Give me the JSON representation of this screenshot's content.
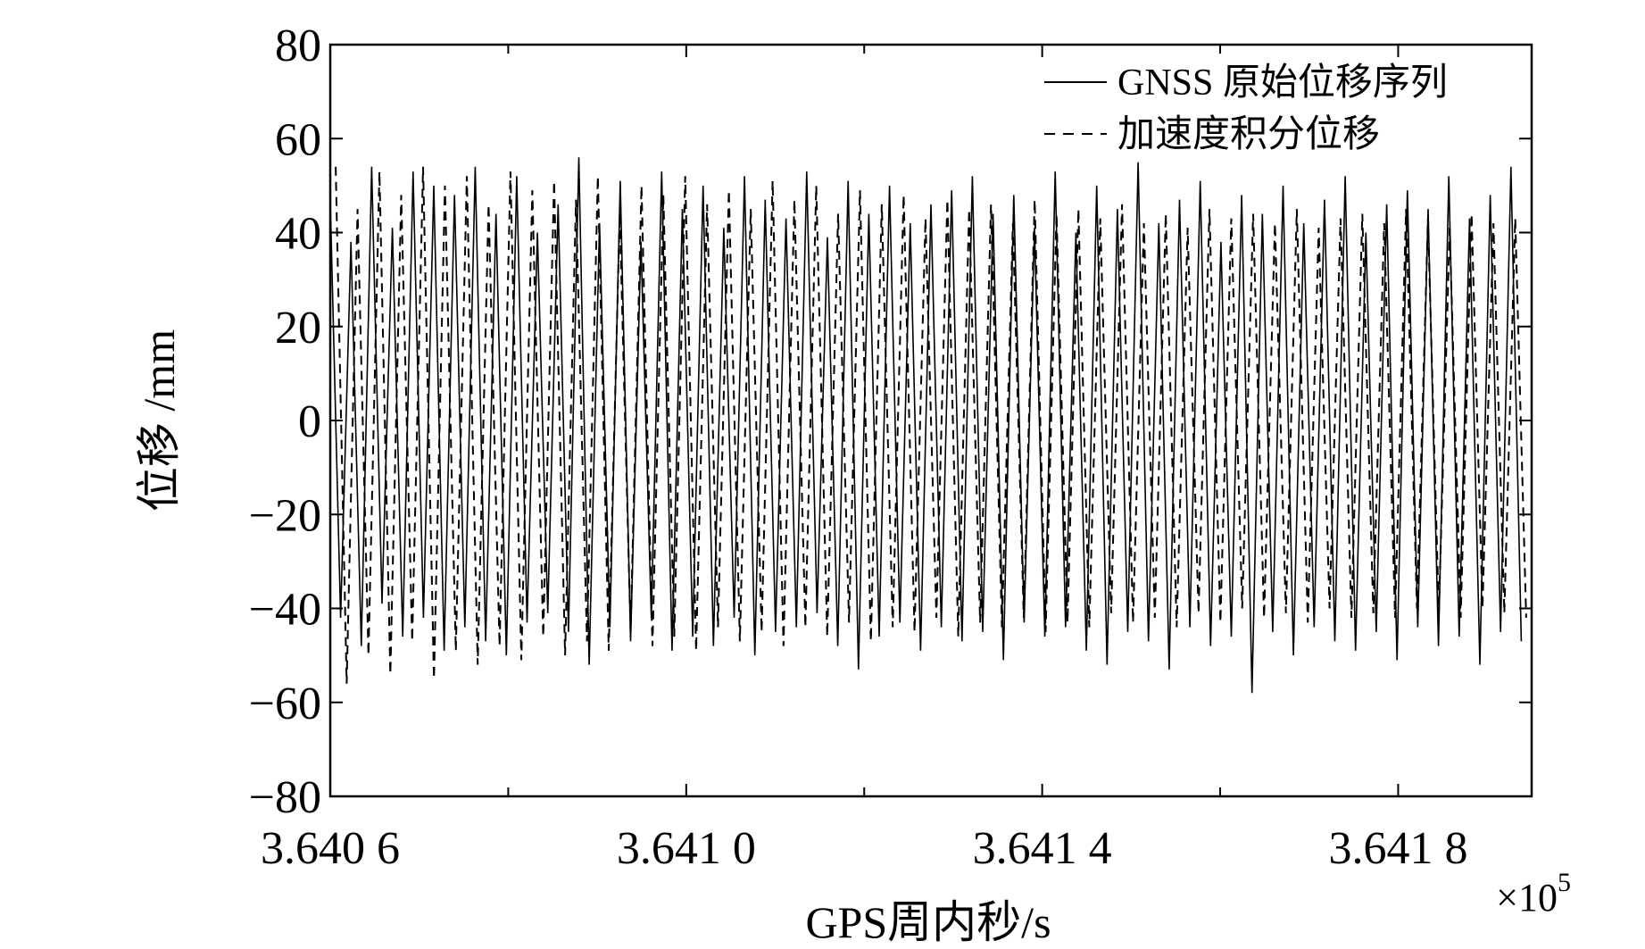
{
  "chart_data": {
    "type": "line",
    "xlabel": "GPS周内秒/s",
    "ylabel": "位移 /mm",
    "x_multiplier": "×10",
    "x_multiplier_exp": "5",
    "xlim": [
      3.6406,
      3.64195
    ],
    "ylim": [
      -80,
      80
    ],
    "x_ticks": [
      {
        "value": 3.6406,
        "label": "3.640 6"
      },
      {
        "value": 3.641,
        "label": "3.641 0"
      },
      {
        "value": 3.6414,
        "label": "3.641 4"
      },
      {
        "value": 3.6418,
        "label": "3.641 8"
      }
    ],
    "x_minor_ticks": [
      3.6408,
      3.6412,
      3.6416
    ],
    "y_ticks": [
      {
        "value": 80,
        "label": "80"
      },
      {
        "value": 60,
        "label": "60"
      },
      {
        "value": 40,
        "label": "40"
      },
      {
        "value": 20,
        "label": "20"
      },
      {
        "value": 0,
        "label": "0"
      },
      {
        "value": -20,
        "label": "−20"
      },
      {
        "value": -40,
        "label": "−40"
      },
      {
        "value": -60,
        "label": "−60"
      },
      {
        "value": -80,
        "label": "−80"
      }
    ],
    "grid": false,
    "legend_position": "top-right",
    "series": [
      {
        "name": "GNSS 原始位移序列",
        "style": "solid",
        "color": "#000000",
        "peaks": [
          47,
          38,
          54,
          41,
          53,
          50,
          48,
          54,
          44,
          52,
          40,
          46,
          56,
          42,
          51,
          38,
          53,
          45,
          50,
          41,
          52,
          47,
          43,
          53,
          39,
          51,
          44,
          50,
          42,
          46,
          49,
          52,
          44,
          48,
          41,
          53,
          40,
          50,
          45,
          55,
          42,
          47,
          51,
          38,
          48,
          44,
          50,
          42,
          47,
          52,
          40,
          46,
          49,
          45,
          52,
          43,
          48,
          54
        ],
        "troughs": [
          -42,
          -48,
          -39,
          -46,
          -42,
          -49,
          -44,
          -47,
          -50,
          -43,
          -41,
          -45,
          -52,
          -44,
          -47,
          -42,
          -49,
          -46,
          -48,
          -42,
          -50,
          -45,
          -44,
          -41,
          -48,
          -53,
          -46,
          -43,
          -49,
          -44,
          -47,
          -45,
          -51,
          -43,
          -46,
          -44,
          -49,
          -52,
          -45,
          -47,
          -53,
          -44,
          -48,
          -46,
          -58,
          -45,
          -50,
          -44,
          -47,
          -49,
          -45,
          -51,
          -44,
          -48,
          -46,
          -52,
          -45,
          -47
        ]
      },
      {
        "name": "加速度积分位移",
        "style": "dashed",
        "color": "#000000",
        "peaks": [
          54,
          45,
          53,
          48,
          54,
          50,
          52,
          46,
          53,
          49,
          51,
          47,
          52,
          44,
          50,
          48,
          52,
          46,
          49,
          45,
          51,
          47,
          50,
          44,
          49,
          46,
          48,
          43,
          47,
          45,
          46,
          42,
          47,
          44,
          45,
          43,
          46,
          42,
          44,
          41,
          45,
          43,
          44,
          42,
          45,
          41,
          43,
          44,
          42,
          45,
          43,
          41,
          44,
          42,
          43
        ],
        "troughs": [
          -56,
          -50,
          -54,
          -47,
          -55,
          -49,
          -52,
          -48,
          -51,
          -46,
          -50,
          -47,
          -49,
          -45,
          -48,
          -46,
          -49,
          -44,
          -47,
          -45,
          -48,
          -44,
          -46,
          -43,
          -47,
          -44,
          -45,
          -42,
          -46,
          -43,
          -44,
          -42,
          -45,
          -43,
          -44,
          -41,
          -43,
          -42,
          -44,
          -41,
          -43,
          -40,
          -42,
          -41,
          -43,
          -40,
          -42,
          -41,
          -42,
          -40,
          -41,
          -42,
          -40,
          -41,
          -42
        ]
      }
    ]
  }
}
